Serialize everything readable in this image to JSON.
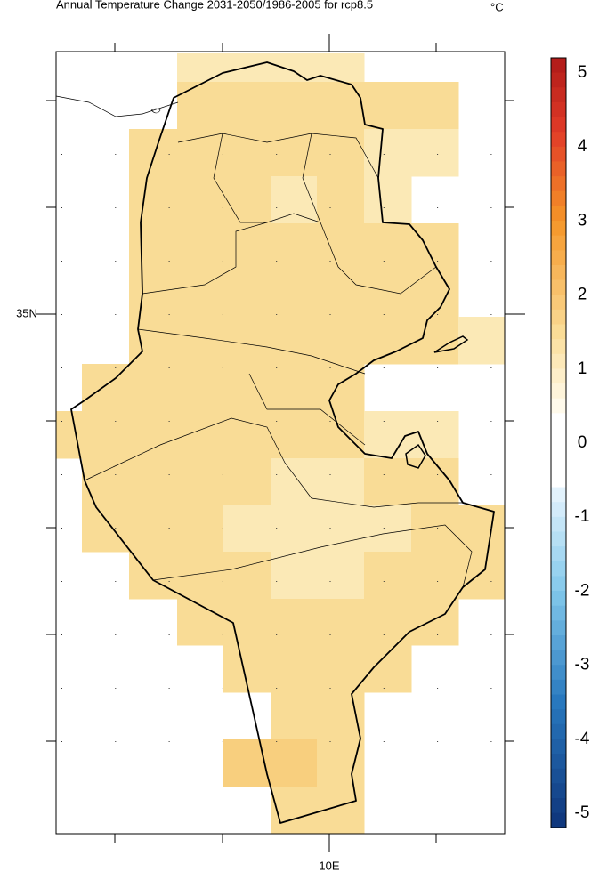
{
  "title": "Annual Temperature Change 2031-2050/1986-2005 for rcp8.5",
  "unit": "°C",
  "lat_label": "35N",
  "lon_label": "10E",
  "colorbar": {
    "ticks": [
      5,
      4,
      3,
      2,
      1,
      0,
      -1,
      -2,
      -3,
      -4,
      -5
    ]
  }
}
